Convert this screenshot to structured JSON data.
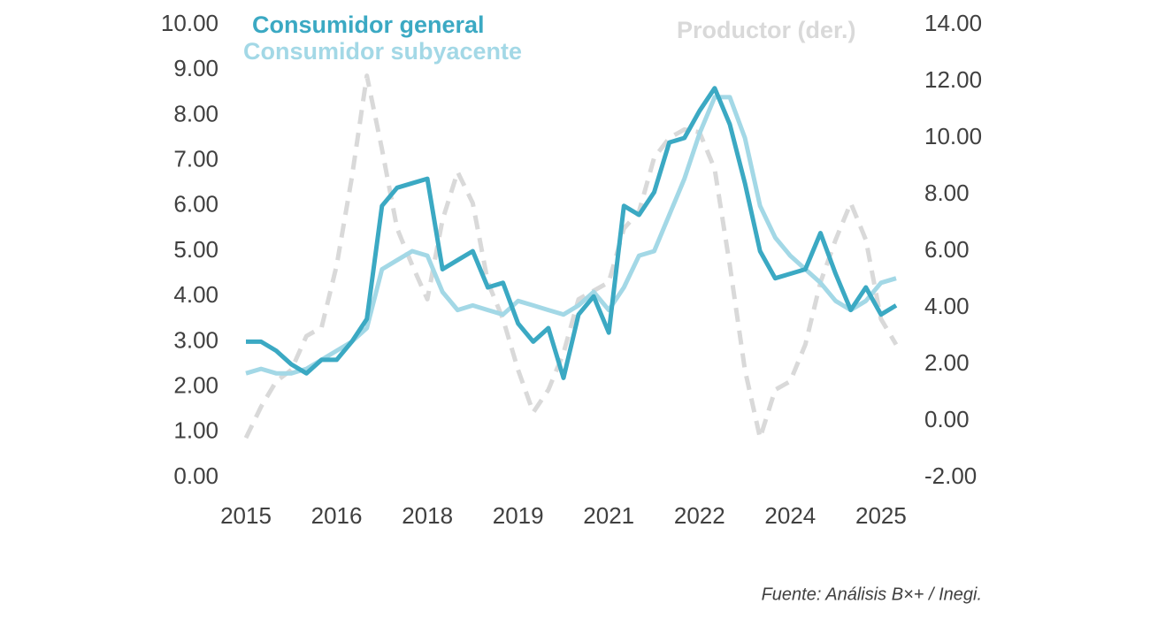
{
  "chart_data": {
    "type": "line",
    "categories": [
      "2015",
      null,
      null,
      null,
      null,
      null,
      "2016",
      null,
      null,
      null,
      null,
      null,
      "2018",
      null,
      null,
      null,
      null,
      null,
      "2019",
      null,
      null,
      null,
      null,
      null,
      "2021",
      null,
      null,
      null,
      null,
      null,
      "2022",
      null,
      null,
      null,
      null,
      null,
      "2024",
      null,
      null,
      null,
      null,
      null,
      "2025",
      null
    ],
    "series": [
      {
        "name": "Consumidor general",
        "color": "#3ba9c3",
        "values": [
          3.0,
          3.0,
          2.8,
          2.5,
          2.3,
          2.6,
          2.6,
          3.0,
          3.5,
          6.0,
          6.4,
          6.5,
          6.6,
          4.6,
          4.8,
          5.0,
          4.2,
          4.3,
          3.4,
          3.0,
          3.3,
          2.2,
          3.6,
          4.0,
          3.2,
          6.0,
          5.8,
          6.3,
          7.4,
          7.5,
          8.1,
          8.6,
          7.8,
          6.5,
          5.0,
          4.4,
          4.5,
          4.6,
          5.4,
          4.5,
          3.7,
          4.2,
          3.6,
          3.8
        ]
      },
      {
        "name": "Consumidor subyacente",
        "color": "#a3d8e6",
        "values": [
          2.3,
          2.4,
          2.3,
          2.3,
          2.4,
          2.6,
          2.8,
          3.0,
          3.3,
          4.6,
          4.8,
          5.0,
          4.9,
          4.1,
          3.7,
          3.8,
          3.7,
          3.6,
          3.9,
          3.8,
          3.7,
          3.6,
          3.8,
          4.1,
          3.7,
          4.2,
          4.9,
          5.0,
          5.8,
          6.6,
          7.6,
          8.4,
          8.4,
          7.5,
          6.0,
          5.3,
          4.9,
          4.6,
          4.3,
          3.9,
          3.7,
          3.9,
          4.3,
          4.4
        ]
      },
      {
        "name": "Productor (der.)",
        "color": "#d9d9d9",
        "axis": "y2",
        "dashed": true,
        "values": [
          -0.6,
          0.5,
          1.4,
          1.8,
          3.0,
          3.3,
          5.5,
          8.6,
          12.2,
          9.6,
          6.8,
          5.5,
          4.3,
          7.1,
          8.8,
          7.7,
          4.9,
          3.6,
          1.8,
          0.3,
          1.1,
          2.4,
          4.3,
          4.6,
          4.9,
          6.8,
          7.4,
          9.3,
          10.0,
          10.3,
          10.2,
          8.9,
          5.5,
          1.8,
          -0.6,
          1.1,
          1.4,
          2.7,
          4.9,
          6.4,
          7.7,
          6.4,
          3.6,
          2.7
        ]
      }
    ],
    "ylim": [
      0,
      10
    ],
    "yticks": [
      {
        "value": 0,
        "label": "0.00"
      },
      {
        "value": 1,
        "label": "1.00"
      },
      {
        "value": 2,
        "label": "2.00"
      },
      {
        "value": 3,
        "label": "3.00"
      },
      {
        "value": 4,
        "label": "4.00"
      },
      {
        "value": 5,
        "label": "5.00"
      },
      {
        "value": 6,
        "label": "6.00"
      },
      {
        "value": 7,
        "label": "7.00"
      },
      {
        "value": 8,
        "label": "8.00"
      },
      {
        "value": 9,
        "label": "9.00"
      },
      {
        "value": 10,
        "label": "10.00"
      }
    ],
    "y2lim": [
      -2,
      14
    ],
    "y2ticks": [
      {
        "value": -2,
        "label": "-2.00"
      },
      {
        "value": 0,
        "label": "0.00"
      },
      {
        "value": 2,
        "label": "2.00"
      },
      {
        "value": 4,
        "label": "4.00"
      },
      {
        "value": 6,
        "label": "6.00"
      },
      {
        "value": 8,
        "label": "8.00"
      },
      {
        "value": 10,
        "label": "10.00"
      },
      {
        "value": 12,
        "label": "12.00"
      },
      {
        "value": 14,
        "label": "14.00"
      }
    ],
    "source": "Fuente: Análisis B×+ / Inegi."
  }
}
